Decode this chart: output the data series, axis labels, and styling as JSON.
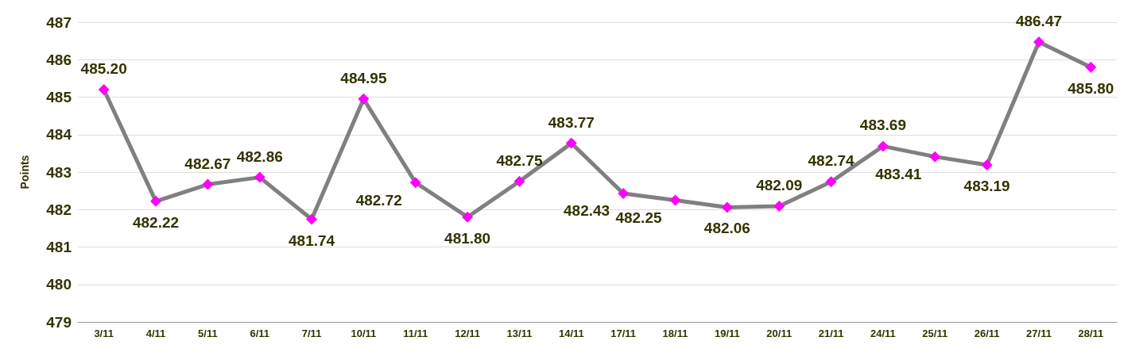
{
  "chart_data": {
    "type": "line",
    "ylabel": "Points",
    "categories": [
      "3/11",
      "4/11",
      "5/11",
      "6/11",
      "7/11",
      "10/11",
      "11/11",
      "12/11",
      "13/11",
      "14/11",
      "17/11",
      "18/11",
      "19/11",
      "20/11",
      "21/11",
      "24/11",
      "25/11",
      "26/11",
      "27/11",
      "28/11"
    ],
    "series": [
      {
        "color": "#808080",
        "values": [
          485.2,
          482.22,
          482.67,
          482.86,
          481.74,
          484.95,
          482.72,
          481.8,
          482.75,
          483.77,
          482.43,
          482.25,
          482.06,
          482.09,
          482.74,
          483.69,
          483.41,
          483.19,
          486.47,
          485.8
        ],
        "value_labels": [
          "485.20",
          "482.22",
          "482.67",
          "482.86",
          "481.74",
          "484.95",
          "482.72",
          "481.80",
          "482.75",
          "483.77",
          "482.43",
          "482.25",
          "482.06",
          "482.09",
          "482.74",
          "483.69",
          "483.41",
          "483.19",
          "486.47",
          "485.80"
        ]
      }
    ],
    "ylim": [
      479,
      487
    ],
    "yticks": [
      479,
      480,
      481,
      482,
      483,
      484,
      485,
      486,
      487
    ],
    "grid": "y",
    "marker": "diamond",
    "line_style": "solid"
  }
}
